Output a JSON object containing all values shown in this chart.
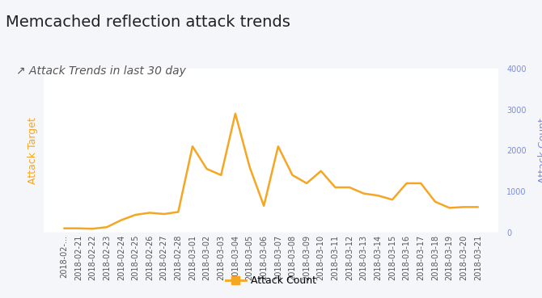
{
  "title": "Memcached reflection attack trends",
  "subtitle": "↗ Attack Trends in last 30 day",
  "dates": [
    "2018-02-...",
    "2018-02-21",
    "2018-02-22",
    "2018-02-23",
    "2018-02-24",
    "2018-02-25",
    "2018-02-26",
    "2018-02-27",
    "2018-02-28",
    "2018-03-01",
    "2018-03-02",
    "2018-03-03",
    "2018-03-04",
    "2018-03-05",
    "2018-03-06",
    "2018-03-07",
    "2018-03-08",
    "2018-03-09",
    "2018-03-10",
    "2018-03-11",
    "2018-03-12",
    "2018-03-13",
    "2018-03-14",
    "2018-03-15",
    "2018-03-16",
    "2018-03-17",
    "2018-03-18",
    "2018-03-19",
    "2018-03-20",
    "2018-03-21"
  ],
  "values": [
    100,
    100,
    90,
    130,
    300,
    430,
    480,
    450,
    500,
    2100,
    1550,
    1400,
    2900,
    1600,
    650,
    2100,
    1400,
    1200,
    1500,
    1100,
    1100,
    950,
    900,
    800,
    1200,
    1200,
    750,
    600,
    620,
    620
  ],
  "line_color": "#f5a623",
  "fill_color": "#f5a623",
  "left_ylabel": "Attack Target",
  "right_ylabel": "Attack Count",
  "right_ylabel_color": "#7b8cde",
  "left_ylabel_color": "#f5a623",
  "legend_label": "Attack Count",
  "ylim": [
    0,
    4000
  ],
  "yticks_right": [
    0,
    1000,
    2000,
    3000,
    4000
  ],
  "bg_color": "#f5f6fa",
  "plot_bg_color": "#ffffff",
  "grid_color": "#e0e0e0",
  "title_fontsize": 14,
  "subtitle_fontsize": 10,
  "axis_label_fontsize": 9,
  "tick_fontsize": 7
}
